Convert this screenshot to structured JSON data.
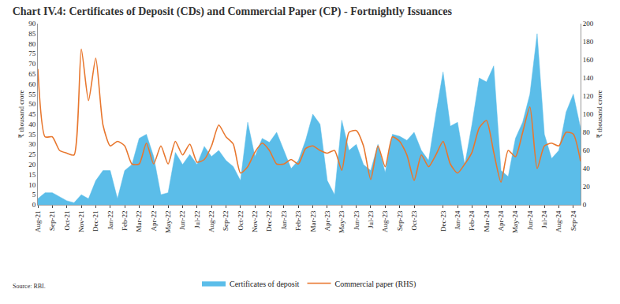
{
  "chart_data": {
    "type": "line",
    "title": "Chart IV.4: Certificates of Deposit (CDs) and Commercial Paper (CP) - Fortnightly Issuances",
    "y_label": "₹ thousand crore",
    "y2_label": "₹ thousand crore",
    "source": "Source: RBI.",
    "categories": [
      "Aug-21",
      null,
      "Sep-21",
      null,
      "Oct-21",
      null,
      "Nov-21",
      null,
      "Dec-21",
      null,
      "Jan-22",
      null,
      "Feb-22",
      null,
      "Mar-22",
      null,
      "Apr-22",
      null,
      "May-22",
      null,
      "Jun-22",
      null,
      "Jul-22",
      null,
      "Aug-22",
      null,
      "Sep-22",
      null,
      "Oct-22",
      null,
      "Nov-22",
      null,
      "Dec-22",
      null,
      "Jan-23",
      null,
      "Feb-23",
      null,
      "Mar-23",
      null,
      "Apr-23",
      null,
      "May-23",
      null,
      "Jun-23",
      null,
      "Jul-23",
      null,
      "Aug-23",
      null,
      "Sep-23",
      null,
      "Oct-23",
      null,
      null,
      null,
      "Dec-23",
      null,
      "Jan-24",
      null,
      "Feb-24",
      null,
      "Mar-24",
      null,
      "Apr-24",
      null,
      "May-24",
      null,
      "Jun-24",
      null,
      "Jul-24",
      null,
      "Aug-24",
      null,
      "Sep-24",
      null
    ],
    "series": [
      {
        "name": "Certificates of deposit",
        "type": "area",
        "color": "#5bbde9",
        "axis": "y",
        "values": [
          3,
          6,
          6,
          4,
          2,
          1,
          5,
          3,
          12,
          17,
          17,
          3,
          17,
          20,
          33,
          35,
          24,
          5,
          6,
          26,
          20,
          25,
          20,
          29,
          24,
          27,
          22,
          19,
          12,
          41,
          24,
          33,
          31,
          36,
          27,
          18,
          22,
          32,
          45,
          40,
          12,
          5,
          42,
          27,
          30,
          20,
          17,
          30,
          16,
          35,
          34,
          32,
          36,
          27,
          22,
          45,
          66,
          39,
          41,
          20,
          40,
          63,
          61,
          69,
          17,
          14,
          33,
          41,
          55,
          85,
          35,
          23,
          27,
          46,
          55,
          38
        ]
      },
      {
        "name": "Commercial paper (RHS)",
        "type": "line",
        "color": "#e8772e",
        "axis": "y2",
        "values": [
          150,
          75,
          75,
          60,
          57,
          55,
          172,
          115,
          162,
          88,
          65,
          70,
          65,
          45,
          45,
          68,
          45,
          65,
          45,
          70,
          55,
          67,
          47,
          50,
          65,
          88,
          75,
          67,
          35,
          42,
          58,
          68,
          60,
          45,
          45,
          50,
          45,
          62,
          65,
          60,
          57,
          60,
          38,
          80,
          82,
          65,
          28,
          65,
          42,
          75,
          70,
          55,
          27,
          55,
          42,
          55,
          70,
          45,
          35,
          45,
          58,
          85,
          93,
          58,
          25,
          60,
          53,
          80,
          108,
          40,
          65,
          68,
          65,
          80,
          78,
          48
        ]
      }
    ],
    "ylim": [
      0,
      90
    ],
    "yticks": [
      0,
      5,
      10,
      15,
      20,
      25,
      30,
      35,
      40,
      45,
      50,
      55,
      60,
      65,
      70,
      75,
      80,
      85,
      90
    ],
    "y2lim": [
      0,
      200
    ],
    "y2ticks": [
      0,
      20,
      40,
      60,
      80,
      100,
      120,
      140,
      160,
      180,
      200
    ],
    "grid": false,
    "legend": "bottom"
  }
}
